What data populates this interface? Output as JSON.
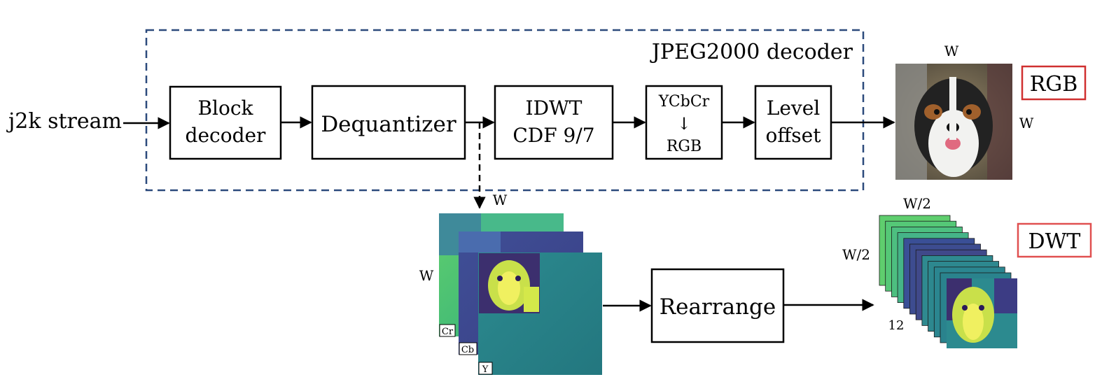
{
  "decoder": {
    "title": "JPEG2000 decoder",
    "frame_color": "#2c4a7c"
  },
  "input": {
    "label": "j2k stream"
  },
  "blocks": {
    "block_decoder": [
      "Block",
      "decoder"
    ],
    "dequantizer": "Dequantizer",
    "idwt": [
      "IDWT",
      "CDF 9/7"
    ],
    "color": [
      "YCbCr",
      "↓",
      "RGB"
    ],
    "level_offset": [
      "Level",
      "offset"
    ],
    "rearrange": "Rearrange"
  },
  "rgb_output": {
    "badge": "RGB",
    "badge_color": "#d03030",
    "width_label": "W",
    "height_label": "W"
  },
  "dwt_input": {
    "width_label": "W",
    "height_label": "W",
    "channels": [
      "Cr",
      "Cb",
      "Y"
    ]
  },
  "dwt_output": {
    "badge": "DWT",
    "badge_color": "#e05050",
    "width_label": "W/2",
    "height_label": "W/2",
    "count_label": "12"
  }
}
